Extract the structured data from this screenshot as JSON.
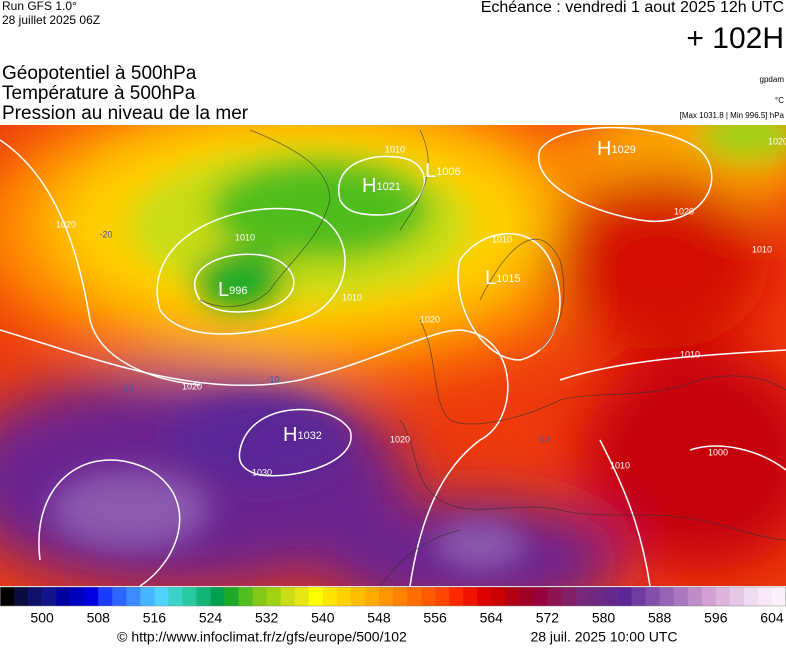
{
  "header": {
    "run": "Run GFS 1.0°",
    "run_date": "28 juillet 2025 06Z",
    "valid": "Echéance : vendredi 1 aout 2025 12h UTC",
    "lead": "+ 102H",
    "fields": [
      "Géopotentiel à 500hPa",
      "Température à 500hPa",
      "Pression au niveau de la mer"
    ],
    "units": [
      "gpdam",
      "°C",
      "[Max 1031.8 | Min 996.5] hPa"
    ]
  },
  "map": {
    "centers": [
      {
        "symbol": "L",
        "value": "996"
      },
      {
        "symbol": "H",
        "value": "1021"
      },
      {
        "symbol": "L",
        "value": "1006"
      },
      {
        "symbol": "H",
        "value": "1029"
      },
      {
        "symbol": "L",
        "value": "1015"
      },
      {
        "symbol": "H",
        "value": "1032"
      }
    ],
    "contour_labels": [
      "1020",
      "1010",
      "1010",
      "1010",
      "1020",
      "1020",
      "1010",
      "1020",
      "1030",
      "1020",
      "1010",
      "1010",
      "1000",
      "1010",
      "1020"
    ],
    "temperature_labels": [
      "-10",
      "-10",
      "-20",
      "-10"
    ]
  },
  "colorbar": {
    "lim": [
      494,
      606
    ],
    "ticks": [
      500,
      508,
      516,
      524,
      532,
      540,
      548,
      556,
      564,
      572,
      580,
      588,
      596,
      604
    ],
    "colors": [
      "#000000",
      "#0b0b40",
      "#10106a",
      "#14148a",
      "#0000a0",
      "#0000c0",
      "#0000e0",
      "#1a3cff",
      "#2e64ff",
      "#3c8cff",
      "#46b4ff",
      "#50d2ff",
      "#3cd2c8",
      "#28c8a0",
      "#14b478",
      "#00a050",
      "#1eaa28",
      "#50be1e",
      "#82c814",
      "#a0d214",
      "#c8dc14",
      "#e6e614",
      "#ffff00",
      "#ffe600",
      "#ffd200",
      "#ffbe00",
      "#ffaa00",
      "#ff9600",
      "#ff8200",
      "#ff6e00",
      "#ff5a00",
      "#ff4600",
      "#ff2800",
      "#f01400",
      "#dc0000",
      "#c80000",
      "#b40014",
      "#a00028",
      "#96003c",
      "#8c1450",
      "#821e64",
      "#782878",
      "#6e2882",
      "#64288c",
      "#5a2896",
      "#6e3ca0",
      "#8250aa",
      "#9664b4",
      "#aa78be",
      "#be8cc8",
      "#d2a0d2",
      "#dcb4dc",
      "#e6c8e6",
      "#f0dcf0",
      "#f6e8f6",
      "#faf2fa"
    ]
  },
  "footer": {
    "source": "© http://www.infoclimat.fr/z/gfs/europe/500/102",
    "generated": "28 juil. 2025 10:00 UTC"
  }
}
